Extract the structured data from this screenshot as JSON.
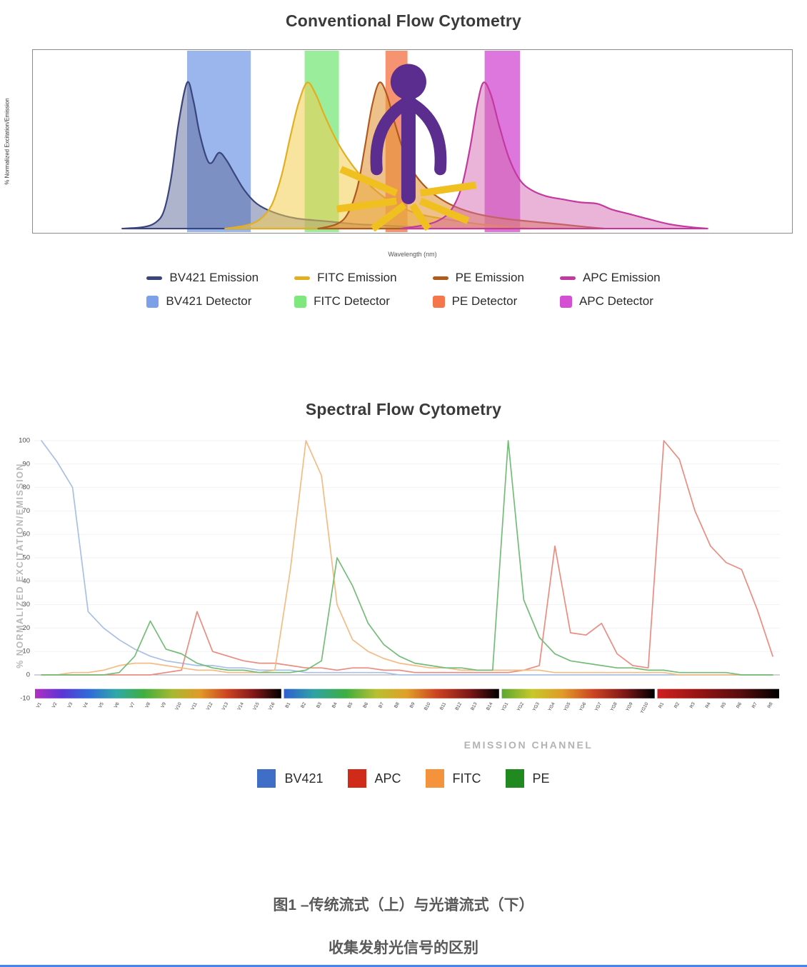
{
  "caption": {
    "line1": "图1 –传统流式（上）与光谱流式（下）",
    "line2": "收集发射光信号的区别"
  },
  "chart_data": [
    {
      "id": "conventional",
      "type": "area",
      "title": "Conventional Flow Cytometry",
      "xlabel": "Wavelength (nm)",
      "ylabel": "% Normalized Excitation/Emission",
      "xlim": [
        295,
        915
      ],
      "ylim": [
        0,
        100
      ],
      "grid": false,
      "legend_position": "bottom",
      "detectors": [
        {
          "name": "BV421 Detector",
          "range": [
            421,
            473
          ],
          "color": "#7da1e8"
        },
        {
          "name": "FITC Detector",
          "range": [
            517,
            545
          ],
          "color": "#7ee87e"
        },
        {
          "name": "PE Detector",
          "range": [
            583,
            601
          ],
          "color": "#f4764a"
        },
        {
          "name": "APC Detector",
          "range": [
            664,
            693
          ],
          "color": "#d44fd4"
        }
      ],
      "series": [
        {
          "name": "BV421 Emission",
          "color": "#39457c",
          "fill": "rgba(96,106,156,0.5)",
          "points": [
            [
              368,
              0
            ],
            [
              385,
              1
            ],
            [
              395,
              4
            ],
            [
              402,
              12
            ],
            [
              408,
              35
            ],
            [
              414,
              72
            ],
            [
              421,
              100
            ],
            [
              426,
              88
            ],
            [
              431,
              66
            ],
            [
              437,
              48
            ],
            [
              441,
              45
            ],
            [
              447,
              52
            ],
            [
              453,
              47
            ],
            [
              460,
              37
            ],
            [
              468,
              26
            ],
            [
              478,
              17
            ],
            [
              492,
              11
            ],
            [
              510,
              7
            ],
            [
              535,
              5
            ],
            [
              560,
              3
            ],
            [
              585,
              2
            ],
            [
              605,
              1
            ],
            [
              620,
              0
            ]
          ]
        },
        {
          "name": "FITC Emission",
          "color": "#e2ae22",
          "fill": "rgba(242,205,80,0.55)",
          "points": [
            [
              452,
              0
            ],
            [
              468,
              2
            ],
            [
              480,
              6
            ],
            [
              490,
              16
            ],
            [
              498,
              36
            ],
            [
              505,
              62
            ],
            [
              512,
              86
            ],
            [
              519,
              100
            ],
            [
              526,
              92
            ],
            [
              533,
              78
            ],
            [
              542,
              62
            ],
            [
              552,
              48
            ],
            [
              563,
              36
            ],
            [
              575,
              26
            ],
            [
              590,
              17
            ],
            [
              610,
              10
            ],
            [
              635,
              6
            ],
            [
              660,
              3
            ],
            [
              685,
              1
            ],
            [
              702,
              0
            ]
          ]
        },
        {
          "name": "PE Emission",
          "color": "#b05a1e",
          "fill": "rgba(228,152,60,0.6)",
          "points": [
            [
              528,
              0
            ],
            [
              543,
              3
            ],
            [
              552,
              10
            ],
            [
              560,
              28
            ],
            [
              566,
              55
            ],
            [
              572,
              84
            ],
            [
              578,
              100
            ],
            [
              584,
              92
            ],
            [
              590,
              74
            ],
            [
              597,
              55
            ],
            [
              605,
              40
            ],
            [
              614,
              30
            ],
            [
              625,
              22
            ],
            [
              640,
              15
            ],
            [
              658,
              10
            ],
            [
              678,
              7
            ],
            [
              700,
              5
            ],
            [
              725,
              3
            ],
            [
              748,
              1
            ],
            [
              762,
              0
            ]
          ]
        },
        {
          "name": "APC Emission",
          "color": "#c2399f",
          "fill": "rgba(214,106,180,0.5)",
          "points": [
            [
              596,
              0
            ],
            [
              612,
              2
            ],
            [
              625,
              5
            ],
            [
              636,
              12
            ],
            [
              645,
              28
            ],
            [
              652,
              55
            ],
            [
              658,
              85
            ],
            [
              663,
              100
            ],
            [
              669,
              92
            ],
            [
              676,
              70
            ],
            [
              684,
              48
            ],
            [
              693,
              33
            ],
            [
              703,
              26
            ],
            [
              715,
              22
            ],
            [
              728,
              20
            ],
            [
              742,
              18
            ],
            [
              756,
              17
            ],
            [
              768,
              13
            ],
            [
              782,
              10
            ],
            [
              800,
              6
            ],
            [
              815,
              3
            ],
            [
              832,
              1
            ],
            [
              846,
              0
            ]
          ]
        }
      ]
    },
    {
      "id": "spectral",
      "type": "line",
      "title": "Spectral Flow Cytometry",
      "xlabel": "EMISSION CHANNEL",
      "ylabel": "% NORMALIZED EXCITATION/EMISSION",
      "ylim": [
        -10,
        100
      ],
      "yticks": [
        100,
        90,
        80,
        70,
        60,
        50,
        40,
        30,
        20,
        10,
        0,
        -10
      ],
      "grid": false,
      "legend_position": "bottom",
      "channels": [
        "V1",
        "V2",
        "V3",
        "V4",
        "V5",
        "V6",
        "V7",
        "V8",
        "V9",
        "V10",
        "V11",
        "V12",
        "V13",
        "V14",
        "V15",
        "V16",
        "B1",
        "B2",
        "B3",
        "B4",
        "B5",
        "B6",
        "B7",
        "B8",
        "B9",
        "B10",
        "B11",
        "B12",
        "B13",
        "B14",
        "YG1",
        "YG2",
        "YG3",
        "YG4",
        "YG5",
        "YG6",
        "YG7",
        "YG8",
        "YG9",
        "YG10",
        "R1",
        "R2",
        "R3",
        "R4",
        "R5",
        "R6",
        "R7",
        "R8"
      ],
      "channel_groups": [
        {
          "name": "violet",
          "count": 16,
          "stops": [
            "#b030c0",
            "#5a36d6",
            "#2f6bd8",
            "#2fa8a8",
            "#3fae3f",
            "#a8b82f",
            "#e09a28",
            "#cc4422",
            "#801818",
            "#000000"
          ]
        },
        {
          "name": "blue",
          "count": 14,
          "stops": [
            "#2f5fd0",
            "#2fa3a3",
            "#3fae3f",
            "#b8c030",
            "#e0a028",
            "#cc4422",
            "#801818",
            "#000000"
          ]
        },
        {
          "name": "yellowgreen",
          "count": 10,
          "stops": [
            "#5aa82f",
            "#c8c828",
            "#e09a28",
            "#cc4422",
            "#801818",
            "#000000"
          ]
        },
        {
          "name": "red",
          "count": 8,
          "stops": [
            "#d02020",
            "#981414",
            "#5a0e0e",
            "#000000"
          ]
        }
      ],
      "series": [
        {
          "name": "BV421",
          "line_color": "#a9c0e6",
          "legend_color": "#3f6ec7",
          "values": [
            100,
            91,
            80,
            27,
            20,
            15,
            11,
            8,
            6,
            5,
            4,
            4,
            3,
            3,
            2,
            2,
            2,
            1,
            1,
            1,
            1,
            1,
            1,
            0,
            0,
            0,
            0,
            0,
            0,
            0,
            0,
            0,
            0,
            0,
            0,
            0,
            0,
            0,
            0,
            0,
            0,
            0,
            0,
            0,
            0,
            0,
            0,
            0
          ]
        },
        {
          "name": "APC",
          "line_color": "#ea8d80",
          "legend_color": "#d02a18",
          "values": [
            0,
            0,
            0,
            0,
            0,
            0,
            0,
            0,
            1,
            2,
            27,
            10,
            8,
            6,
            5,
            5,
            4,
            3,
            3,
            2,
            3,
            3,
            2,
            2,
            1,
            1,
            1,
            1,
            1,
            1,
            1,
            2,
            4,
            55,
            18,
            17,
            22,
            9,
            4,
            3,
            100,
            92,
            70,
            55,
            48,
            45,
            28,
            8
          ]
        },
        {
          "name": "FITC",
          "line_color": "#f3bc86",
          "legend_color": "#f5923c",
          "values": [
            0,
            0,
            1,
            1,
            2,
            4,
            5,
            5,
            4,
            3,
            2,
            2,
            1,
            1,
            1,
            2,
            45,
            100,
            85,
            30,
            15,
            10,
            7,
            5,
            4,
            3,
            3,
            2,
            2,
            2,
            2,
            2,
            2,
            1,
            1,
            1,
            1,
            1,
            1,
            1,
            1,
            0,
            0,
            0,
            0,
            0,
            0,
            0
          ]
        },
        {
          "name": "PE",
          "line_color": "#74bd78",
          "legend_color": "#208a20",
          "values": [
            0,
            0,
            0,
            0,
            0,
            1,
            8,
            23,
            11,
            9,
            5,
            3,
            2,
            2,
            1,
            1,
            1,
            2,
            6,
            50,
            38,
            22,
            13,
            8,
            5,
            4,
            3,
            3,
            2,
            2,
            100,
            32,
            16,
            9,
            6,
            5,
            4,
            3,
            3,
            2,
            2,
            1,
            1,
            1,
            1,
            0,
            0,
            0
          ]
        }
      ]
    }
  ]
}
